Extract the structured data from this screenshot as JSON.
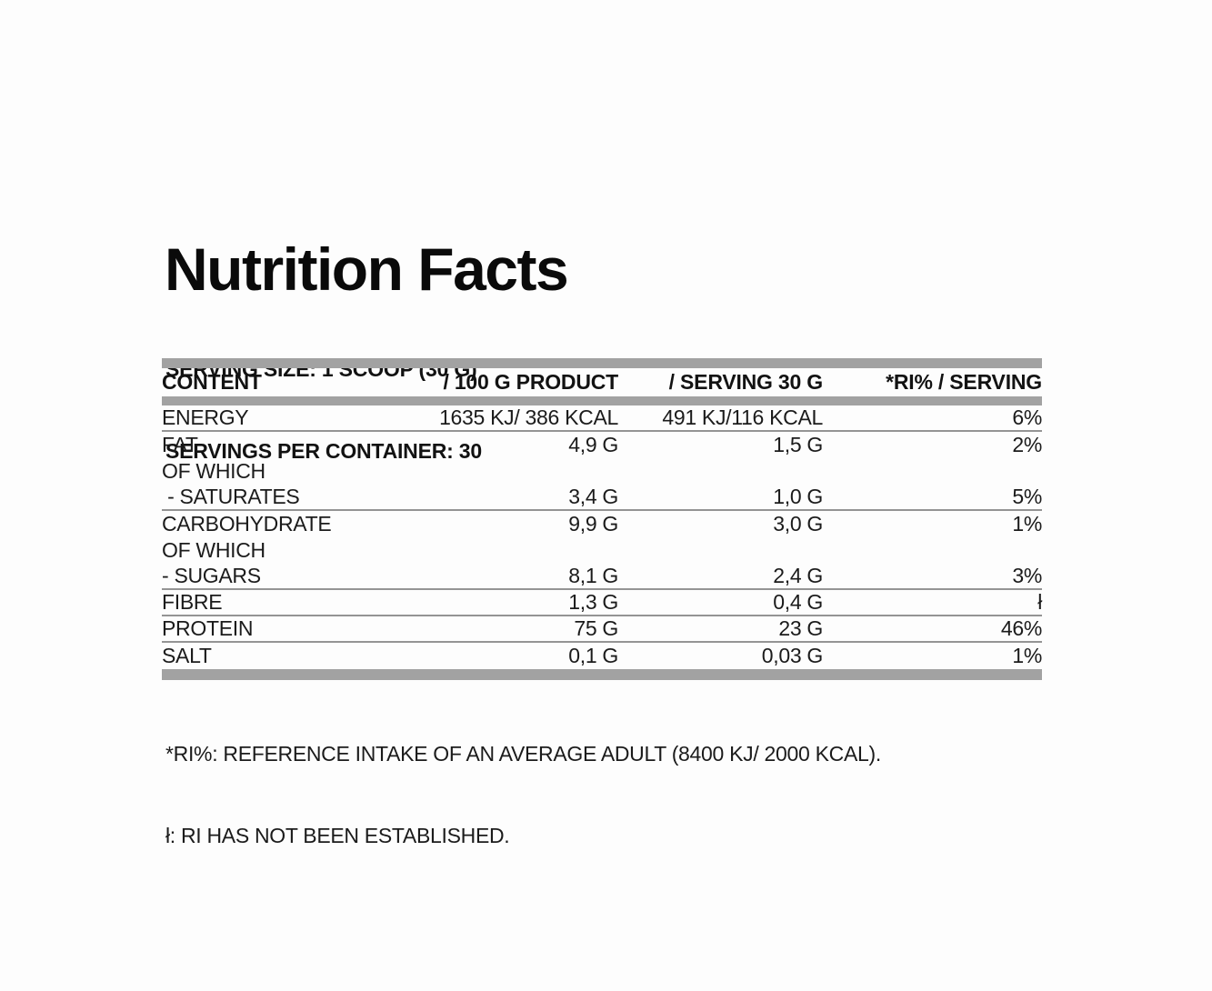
{
  "label": {
    "title": "Nutrition Facts",
    "serving_size": "SERVING SIZE: 1 SCOOP (30 G)",
    "servings_per_container": "SERVINGS PER CONTAINER: 30"
  },
  "table": {
    "headers": {
      "content": "CONTENT",
      "per_100g": "/ 100 G PRODUCT",
      "per_serving": "/ SERVING 30 G",
      "ri_per_serving": "*RI% / SERVING"
    },
    "rows": [
      {
        "content": "ENERGY",
        "per_100g": "1635 KJ/ 386 KCAL",
        "per_serving": "491 KJ/116 KCAL",
        "ri": "6%",
        "divider": true
      },
      {
        "content": "FAT",
        "per_100g": "4,9 G",
        "per_serving": "1,5 G",
        "ri": "2%",
        "divider": false
      },
      {
        "content": "OF WHICH",
        "per_100g": "",
        "per_serving": "",
        "ri": "",
        "divider": false
      },
      {
        "content": " - SATURATES",
        "per_100g": "3,4 G",
        "per_serving": "1,0 G",
        "ri": "5%",
        "divider": true
      },
      {
        "content": "CARBOHYDRATE",
        "per_100g": "9,9 G",
        "per_serving": "3,0 G",
        "ri": "1%",
        "divider": false
      },
      {
        "content": "OF WHICH",
        "per_100g": "",
        "per_serving": "",
        "ri": "",
        "divider": false
      },
      {
        "content": "- SUGARS",
        "per_100g": "8,1 G",
        "per_serving": "2,4 G",
        "ri": "3%",
        "divider": true
      },
      {
        "content": "FIBRE",
        "per_100g": "1,3 G",
        "per_serving": "0,4 G",
        "ri": "ł",
        "divider": true
      },
      {
        "content": "PROTEIN",
        "per_100g": "75 G",
        "per_serving": "23 G",
        "ri": "46%",
        "divider": true
      },
      {
        "content": "SALT",
        "per_100g": "0,1 G",
        "per_serving": "0,03 G",
        "ri": "1%",
        "divider": false
      }
    ]
  },
  "footnotes": {
    "ri_definition": "*RI%: REFERENCE INTAKE OF AN AVERAGE ADULT (8400 KJ/ 2000 KCAL).",
    "not_established": "ł: RI HAS NOT BEEN ESTABLISHED."
  },
  "colors": {
    "bar_gray": "#a2a2a2",
    "divider_gray": "#949494",
    "text_black": "#131313",
    "background": "#fdfdfd"
  }
}
